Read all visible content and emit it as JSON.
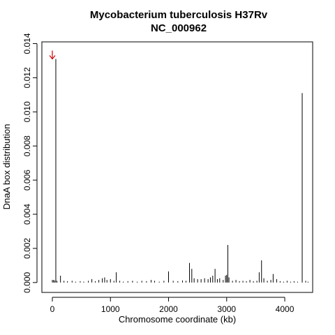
{
  "chart_data": {
    "type": "bar",
    "title": "Mycobacterium tuberculosis H37Rv",
    "subtitle": "NC_000962",
    "xlabel": "Chromosome coordinate (kb)",
    "ylabel": "DnaA box distribution",
    "xlim": [
      -180,
      4480
    ],
    "ylim": [
      -0.00058,
      0.0141
    ],
    "xticks": [
      0,
      1000,
      2000,
      3000,
      4000
    ],
    "xtick_labels": [
      "0",
      "1000",
      "2000",
      "3000",
      "4000"
    ],
    "yticks": [
      0,
      0.002,
      0.004,
      0.006,
      0.008,
      0.01,
      0.012,
      0.014
    ],
    "ytick_labels": [
      "0.000",
      "0.002",
      "0.004",
      "0.006",
      "0.008",
      "0.010",
      "0.012",
      "0.014"
    ],
    "grid": false,
    "bar_color": "#000000",
    "annotation": {
      "marker": "arrow",
      "color": "#cc0000",
      "points_to_x": 0,
      "points_to_y": 0.0131
    },
    "x": [
      0,
      20,
      40,
      60,
      80,
      140,
      200,
      260,
      340,
      400,
      480,
      540,
      620,
      680,
      740,
      800,
      860,
      900,
      940,
      1000,
      1060,
      1100,
      1160,
      1220,
      1300,
      1380,
      1460,
      1540,
      1620,
      1700,
      1760,
      1840,
      1920,
      2000,
      2080,
      2160,
      2240,
      2300,
      2360,
      2400,
      2440,
      2500,
      2560,
      2620,
      2680,
      2720,
      2760,
      2800,
      2840,
      2880,
      2940,
      2980,
      3000,
      3020,
      3040,
      3100,
      3160,
      3220,
      3280,
      3340,
      3400,
      3460,
      3520,
      3560,
      3600,
      3640,
      3700,
      3760,
      3800,
      3860,
      3920,
      3980,
      4040,
      4100,
      4160,
      4220,
      4300,
      4360,
      4400
    ],
    "values": [
      0.00015,
      0.00015,
      0.00012,
      0.0131,
      0.0001,
      0.0004,
      0.0001,
      8e-05,
      0.0001,
      5e-05,
      8e-05,
      5e-05,
      0.0001,
      0.0002,
      8e-05,
      0.00015,
      0.00025,
      0.0003,
      0.00015,
      0.0002,
      0.0001,
      0.0006,
      0.0001,
      5e-05,
      8e-05,
      0.0001,
      5e-05,
      0.0001,
      8e-05,
      0.00015,
      0.0001,
      5e-05,
      0.0001,
      0.00065,
      0.0001,
      8e-05,
      0.00012,
      0.0001,
      0.00115,
      0.0008,
      0.00025,
      0.0002,
      0.0002,
      0.00025,
      0.0002,
      0.0003,
      0.0004,
      0.0008,
      0.0002,
      0.00025,
      0.00015,
      0.0004,
      0.00045,
      0.0022,
      0.0003,
      0.0001,
      0.00015,
      8e-05,
      0.0001,
      8e-05,
      0.00015,
      8e-05,
      0.0001,
      0.0006,
      0.0013,
      0.00025,
      0.0001,
      0.00015,
      0.0005,
      0.0002,
      8e-05,
      5e-05,
      0.0001,
      5e-05,
      8e-05,
      5e-05,
      0.0111,
      0.0001,
      5e-05
    ]
  }
}
